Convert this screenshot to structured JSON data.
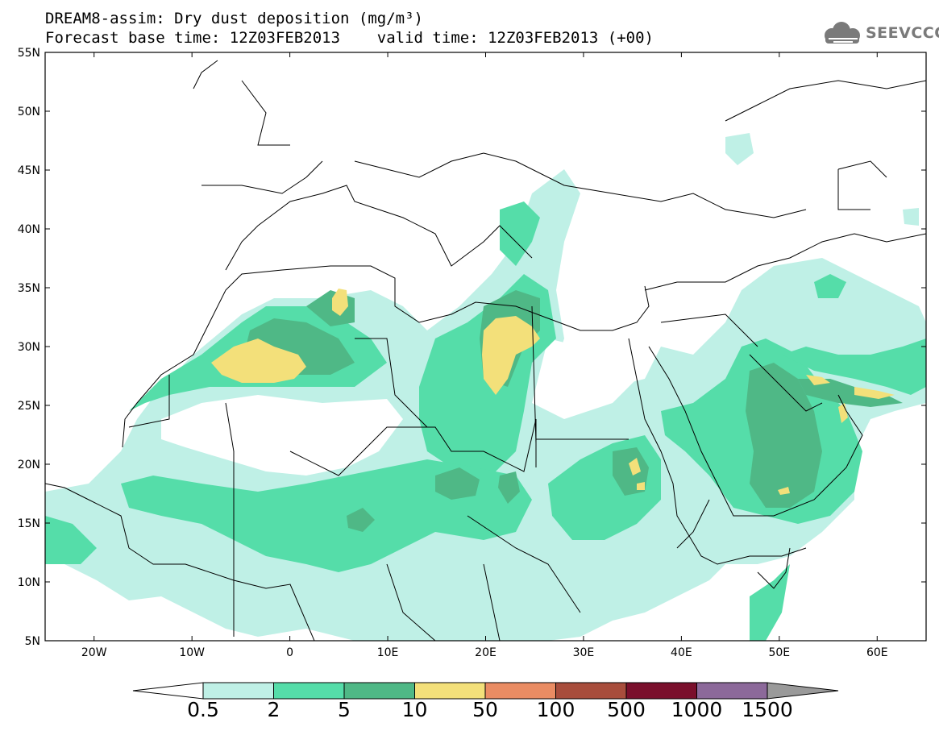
{
  "header": {
    "title_line1": "DREAM8-assim: Dry dust deposition (mg/m³)",
    "title_line2": "Forecast base time: 12Z03FEB2013    valid time: 12Z03FEB2013 (+00)"
  },
  "logo": {
    "text": "SEEVCCC",
    "icon": "cloud-icon",
    "color": "#7a7a7a"
  },
  "map": {
    "region": "North Africa, Europe and Middle East",
    "lat_labels": [
      "55N",
      "50N",
      "45N",
      "40N",
      "35N",
      "30N",
      "25N",
      "20N",
      "15N",
      "10N",
      "5N"
    ],
    "lon_labels": [
      "20W",
      "10W",
      "0",
      "10E",
      "20E",
      "30E",
      "40E",
      "50E",
      "60E"
    ],
    "lon_range": [
      -25,
      65
    ],
    "lat_range": [
      5,
      55
    ]
  },
  "colorbar": {
    "labels": [
      "0.5",
      "2",
      "5",
      "10",
      "50",
      "100",
      "500",
      "1000",
      "1500"
    ],
    "colors": [
      "#bff0e6",
      "#55dda9",
      "#4fb886",
      "#f3e07a",
      "#ea8c63",
      "#a84d3c",
      "#7a0f2c",
      "#8c699a",
      "#9a9a9a"
    ]
  }
}
